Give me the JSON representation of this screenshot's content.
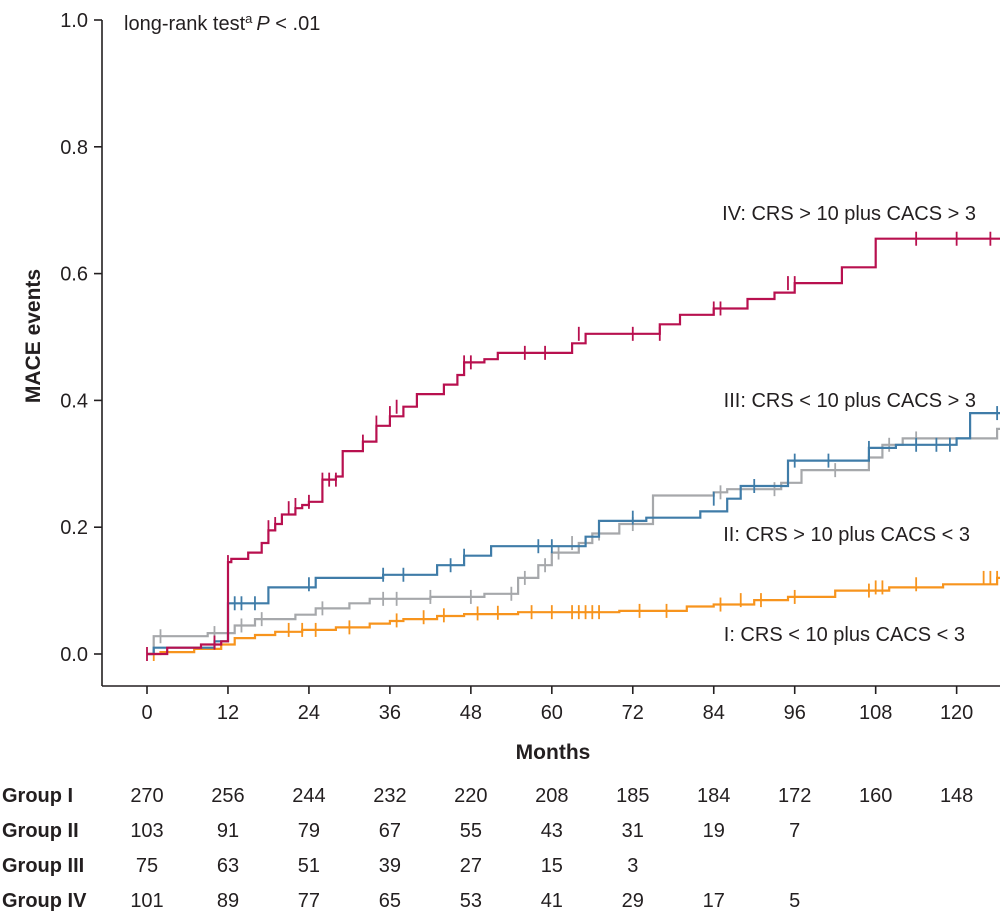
{
  "chart_data": {
    "type": "line",
    "subtype": "kaplan-meier-cumulative-incidence",
    "annotation": {
      "prefix": "long-rank test",
      "superscript": "a",
      "p_label": "P",
      "p_text": " < .01"
    },
    "xlabel": "Months",
    "ylabel": "MACE events",
    "xlim": [
      -4,
      127
    ],
    "ylim": [
      -0.05,
      1.0
    ],
    "xticks": [
      0,
      12,
      24,
      36,
      48,
      60,
      72,
      84,
      96,
      108,
      120
    ],
    "yticks": [
      0.0,
      0.2,
      0.4,
      0.6,
      0.8,
      1.0
    ],
    "ytick_labels": [
      "0.0",
      "0.2",
      "0.4",
      "0.6",
      "0.8",
      "1.0"
    ],
    "series": [
      {
        "name": "I",
        "label": "I: CRS < 10 plus CACS < 3",
        "color": "#f7941d",
        "steps": [
          [
            0,
            0.0
          ],
          [
            2,
            0.003
          ],
          [
            7,
            0.008
          ],
          [
            11,
            0.015
          ],
          [
            13,
            0.025
          ],
          [
            16,
            0.03
          ],
          [
            19,
            0.035
          ],
          [
            23,
            0.038
          ],
          [
            28,
            0.042
          ],
          [
            33,
            0.048
          ],
          [
            36,
            0.052
          ],
          [
            38,
            0.055
          ],
          [
            43,
            0.06
          ],
          [
            47,
            0.063
          ],
          [
            55,
            0.066
          ],
          [
            63,
            0.066
          ],
          [
            70,
            0.068
          ],
          [
            80,
            0.075
          ],
          [
            84,
            0.078
          ],
          [
            90,
            0.085
          ],
          [
            95,
            0.09
          ],
          [
            102,
            0.1
          ],
          [
            110,
            0.105
          ],
          [
            118,
            0.11
          ],
          [
            126,
            0.12
          ],
          [
            127,
            0.12
          ]
        ],
        "censors": [
          [
            1,
            0.0
          ],
          [
            21,
            0.038
          ],
          [
            23,
            0.038
          ],
          [
            25,
            0.038
          ],
          [
            30,
            0.042
          ],
          [
            37,
            0.053
          ],
          [
            41,
            0.058
          ],
          [
            44,
            0.061
          ],
          [
            49,
            0.064
          ],
          [
            52,
            0.065
          ],
          [
            57,
            0.066
          ],
          [
            60,
            0.066
          ],
          [
            63,
            0.066
          ],
          [
            64,
            0.066
          ],
          [
            65,
            0.066
          ],
          [
            66,
            0.066
          ],
          [
            67,
            0.066
          ],
          [
            73,
            0.068
          ],
          [
            77,
            0.068
          ],
          [
            85,
            0.078
          ],
          [
            88,
            0.085
          ],
          [
            91,
            0.085
          ],
          [
            96,
            0.09
          ],
          [
            107,
            0.1
          ],
          [
            108,
            0.105
          ],
          [
            109,
            0.105
          ],
          [
            114,
            0.11
          ],
          [
            124,
            0.12
          ],
          [
            125,
            0.12
          ],
          [
            126,
            0.12
          ]
        ]
      },
      {
        "name": "II",
        "label": "II: CRS > 10 plus CACS < 3",
        "color": "#a6a8ab",
        "steps": [
          [
            0,
            0.0
          ],
          [
            1,
            0.028
          ],
          [
            9,
            0.033
          ],
          [
            13,
            0.045
          ],
          [
            16,
            0.055
          ],
          [
            22,
            0.062
          ],
          [
            25,
            0.072
          ],
          [
            30,
            0.08
          ],
          [
            33,
            0.087
          ],
          [
            42,
            0.09
          ],
          [
            50,
            0.095
          ],
          [
            55,
            0.12
          ],
          [
            58,
            0.14
          ],
          [
            60,
            0.16
          ],
          [
            64,
            0.175
          ],
          [
            66,
            0.19
          ],
          [
            70,
            0.205
          ],
          [
            75,
            0.25
          ],
          [
            84,
            0.255
          ],
          [
            86,
            0.26
          ],
          [
            94,
            0.27
          ],
          [
            97,
            0.29
          ],
          [
            107,
            0.31
          ],
          [
            109,
            0.33
          ],
          [
            112,
            0.34
          ],
          [
            126,
            0.355
          ],
          [
            127,
            0.36
          ]
        ],
        "censors": [
          [
            2,
            0.028
          ],
          [
            10,
            0.033
          ],
          [
            14,
            0.045
          ],
          [
            17,
            0.055
          ],
          [
            26,
            0.072
          ],
          [
            35,
            0.087
          ],
          [
            37,
            0.087
          ],
          [
            42,
            0.09
          ],
          [
            48,
            0.09
          ],
          [
            54,
            0.095
          ],
          [
            56,
            0.12
          ],
          [
            59,
            0.14
          ],
          [
            61,
            0.16
          ],
          [
            63,
            0.175
          ],
          [
            67,
            0.19
          ],
          [
            72,
            0.205
          ],
          [
            85,
            0.255
          ],
          [
            93,
            0.26
          ],
          [
            102,
            0.29
          ],
          [
            110,
            0.33
          ],
          [
            114,
            0.34
          ],
          [
            127,
            0.36
          ]
        ]
      },
      {
        "name": "III",
        "label": "III: CRS < 10 plus CACS > 3",
        "color": "#3f7ca8",
        "steps": [
          [
            0,
            0.0
          ],
          [
            1,
            0.01
          ],
          [
            10,
            0.02
          ],
          [
            12,
            0.08
          ],
          [
            17,
            0.08
          ],
          [
            18,
            0.105
          ],
          [
            25,
            0.12
          ],
          [
            35,
            0.125
          ],
          [
            43,
            0.14
          ],
          [
            47,
            0.155
          ],
          [
            51,
            0.17
          ],
          [
            65,
            0.185
          ],
          [
            67,
            0.21
          ],
          [
            74,
            0.215
          ],
          [
            82,
            0.225
          ],
          [
            86,
            0.245
          ],
          [
            88,
            0.265
          ],
          [
            95,
            0.305
          ],
          [
            107,
            0.325
          ],
          [
            111,
            0.33
          ],
          [
            120,
            0.34
          ],
          [
            122,
            0.38
          ],
          [
            127,
            0.38
          ]
        ],
        "censors": [
          [
            13,
            0.08
          ],
          [
            14,
            0.08
          ],
          [
            16,
            0.08
          ],
          [
            24,
            0.11
          ],
          [
            35,
            0.125
          ],
          [
            38,
            0.125
          ],
          [
            45,
            0.14
          ],
          [
            47,
            0.155
          ],
          [
            58,
            0.17
          ],
          [
            60,
            0.17
          ],
          [
            72,
            0.215
          ],
          [
            84,
            0.245
          ],
          [
            90,
            0.265
          ],
          [
            96,
            0.305
          ],
          [
            101,
            0.305
          ],
          [
            107,
            0.325
          ],
          [
            114,
            0.33
          ],
          [
            117,
            0.33
          ],
          [
            119,
            0.33
          ],
          [
            126,
            0.38
          ]
        ]
      },
      {
        "name": "IV",
        "label": "IV: CRS > 10 plus CACS > 3",
        "color": "#b8104f",
        "steps": [
          [
            0,
            0.0
          ],
          [
            3,
            0.01
          ],
          [
            8,
            0.015
          ],
          [
            11,
            0.02
          ],
          [
            12,
            0.145
          ],
          [
            12.5,
            0.15
          ],
          [
            15,
            0.16
          ],
          [
            17,
            0.175
          ],
          [
            18,
            0.195
          ],
          [
            19,
            0.205
          ],
          [
            20,
            0.22
          ],
          [
            22,
            0.23
          ],
          [
            23,
            0.235
          ],
          [
            24,
            0.24
          ],
          [
            26,
            0.275
          ],
          [
            28,
            0.28
          ],
          [
            29,
            0.32
          ],
          [
            32,
            0.335
          ],
          [
            34,
            0.36
          ],
          [
            36,
            0.375
          ],
          [
            38,
            0.39
          ],
          [
            40,
            0.41
          ],
          [
            44,
            0.425
          ],
          [
            46,
            0.44
          ],
          [
            47,
            0.46
          ],
          [
            50,
            0.465
          ],
          [
            52,
            0.475
          ],
          [
            63,
            0.49
          ],
          [
            65,
            0.505
          ],
          [
            76,
            0.52
          ],
          [
            79,
            0.535
          ],
          [
            84,
            0.545
          ],
          [
            89,
            0.56
          ],
          [
            93,
            0.57
          ],
          [
            96,
            0.585
          ],
          [
            103,
            0.61
          ],
          [
            108,
            0.655
          ],
          [
            127,
            0.655
          ]
        ],
        "censors": [
          [
            0,
            0.0
          ],
          [
            10,
            0.018
          ],
          [
            12,
            0.145
          ],
          [
            18,
            0.2
          ],
          [
            19,
            0.205
          ],
          [
            21,
            0.23
          ],
          [
            22,
            0.235
          ],
          [
            24,
            0.24
          ],
          [
            26,
            0.275
          ],
          [
            27,
            0.275
          ],
          [
            28,
            0.275
          ],
          [
            32,
            0.335
          ],
          [
            34,
            0.365
          ],
          [
            36,
            0.38
          ],
          [
            37,
            0.39
          ],
          [
            47,
            0.46
          ],
          [
            48,
            0.46
          ],
          [
            56,
            0.475
          ],
          [
            59,
            0.475
          ],
          [
            64,
            0.505
          ],
          [
            72,
            0.505
          ],
          [
            76,
            0.505
          ],
          [
            84,
            0.545
          ],
          [
            85,
            0.545
          ],
          [
            95,
            0.585
          ],
          [
            96,
            0.585
          ],
          [
            114,
            0.655
          ],
          [
            120,
            0.655
          ],
          [
            125,
            0.655
          ]
        ]
      }
    ],
    "risk_table": {
      "groups": [
        {
          "label": "Group I",
          "values": [
            "270",
            "256",
            "244",
            "232",
            "220",
            "208",
            "185",
            "184",
            "172",
            "160",
            "148"
          ]
        },
        {
          "label": "Group II",
          "values": [
            "103",
            "91",
            "79",
            "67",
            "55",
            "43",
            "31",
            "19",
            "7"
          ]
        },
        {
          "label": "Group III",
          "values": [
            "75",
            "63",
            "51",
            "39",
            "27",
            "15",
            "3"
          ]
        },
        {
          "label": "Group IV",
          "values": [
            "101",
            "89",
            "77",
            "65",
            "53",
            "41",
            "29",
            "17",
            "5"
          ]
        }
      ]
    }
  }
}
